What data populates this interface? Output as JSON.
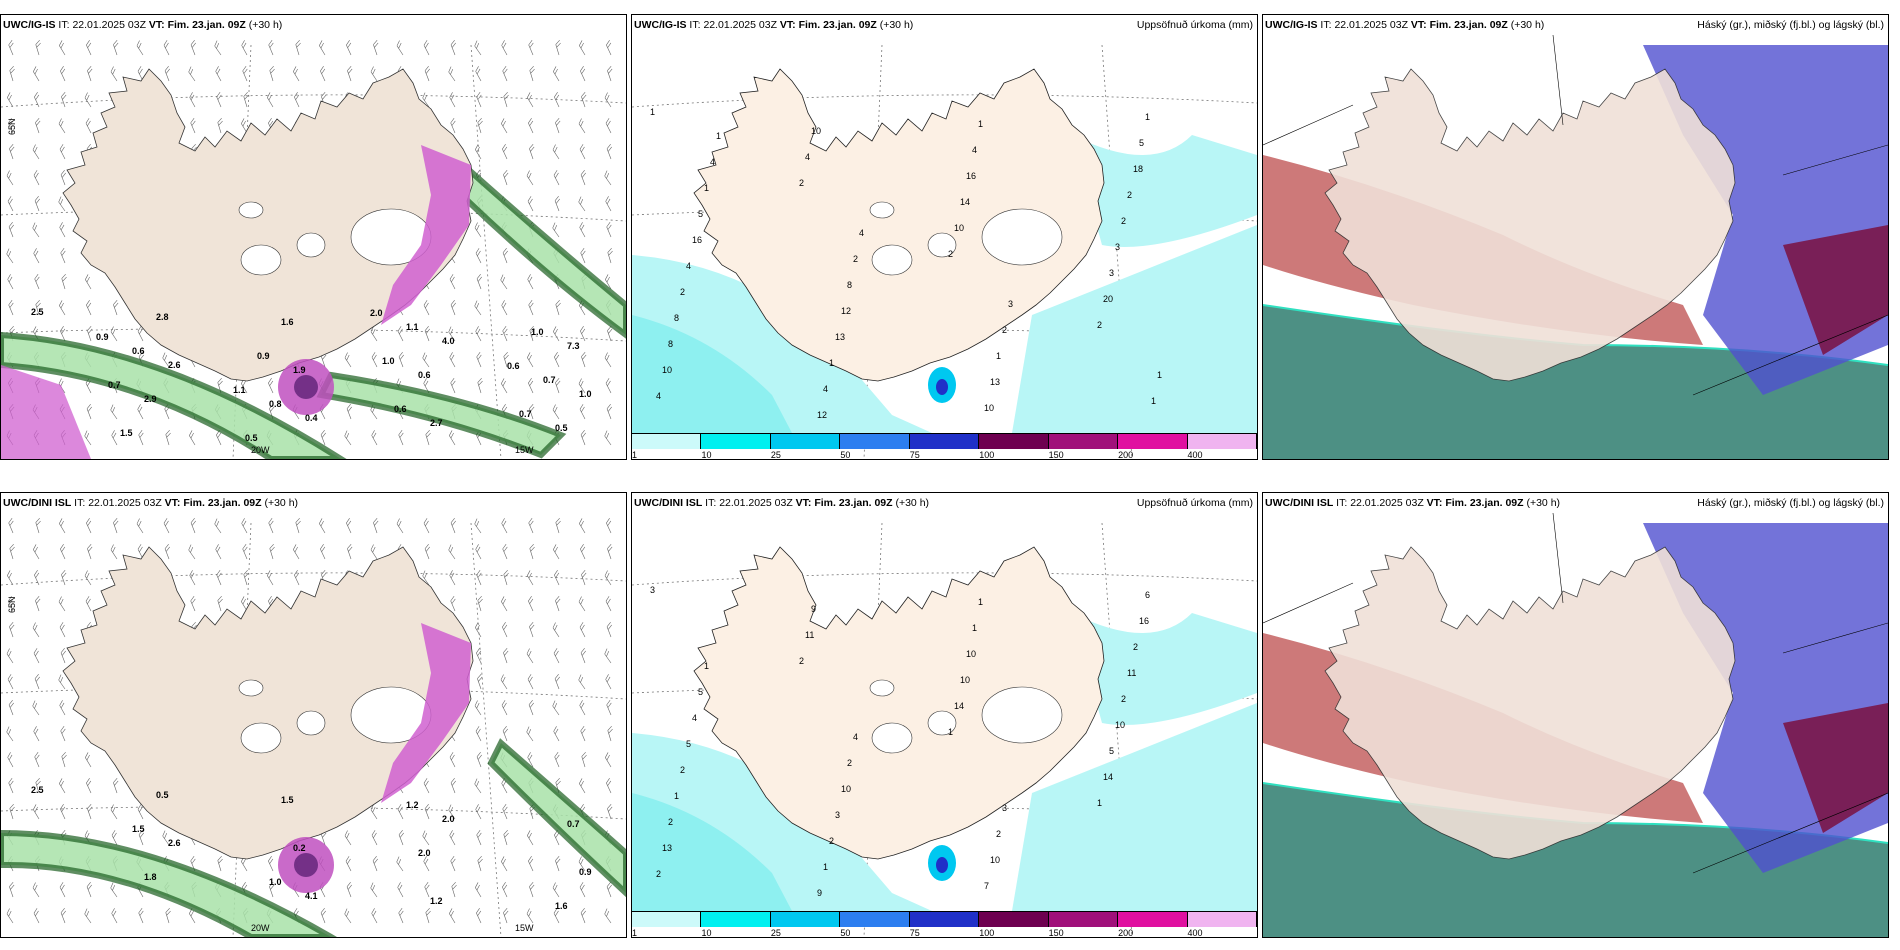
{
  "panels": [
    {
      "model": "UWC/IG-IS",
      "it_label": "IT:",
      "it": "22.01.2025 03Z",
      "vt_label": "VT:",
      "vt": "Fim. 23.jan. 09Z",
      "lead": "(+30 h)",
      "right_title": ""
    },
    {
      "model": "UWC/IG-IS",
      "it_label": "IT:",
      "it": "22.01.2025 03Z",
      "vt_label": "VT:",
      "vt": "Fim. 23.jan. 09Z",
      "lead": "(+30 h)",
      "right_title": "Uppsöfnuð úrkoma (mm)"
    },
    {
      "model": "UWC/IG-IS",
      "it_label": "IT:",
      "it": "22.01.2025 03Z",
      "vt_label": "VT:",
      "vt": "Fim. 23.jan. 09Z",
      "lead": "(+30 h)",
      "right_title": "Háský (gr.), miðský (fj.bl.) og lágský (bl.)"
    },
    {
      "model": "UWC/DINI ISL",
      "it_label": "IT:",
      "it": "22.01.2025 03Z",
      "vt_label": "VT:",
      "vt": "Fim. 23.jan. 09Z",
      "lead": "(+30 h)",
      "right_title": ""
    },
    {
      "model": "UWC/DINI ISL",
      "it_label": "IT:",
      "it": "22.01.2025 03Z",
      "vt_label": "VT:",
      "vt": "Fim. 23.jan. 09Z",
      "lead": "(+30 h)",
      "right_title": "Uppsöfnuð úrkoma (mm)"
    },
    {
      "model": "UWC/DINI ISL",
      "it_label": "IT:",
      "it": "22.01.2025 03Z",
      "vt_label": "VT:",
      "vt": "Fim. 23.jan. 09Z",
      "lead": "(+30 h)",
      "right_title": "Háský (gr.), miðský (fj.bl.) og lágský (bl.)"
    }
  ],
  "colorbar": {
    "labels": [
      "1",
      "10",
      "25",
      "50",
      "75",
      "100",
      "150",
      "200",
      "400"
    ],
    "colors": [
      "#ccfafa",
      "#00f0f0",
      "#00c8f0",
      "#2c7ef0",
      "#2030c8",
      "#6e0050",
      "#a0107a",
      "#e010a0",
      "#f0b4f0"
    ]
  },
  "lon_labels": {
    "w20": "20W",
    "w15": "15W"
  },
  "lat_label": "65N",
  "precip_values_top": [
    "1",
    "2",
    "2",
    "2",
    "4",
    "4",
    "10",
    "20",
    "10",
    "10",
    "14",
    "3",
    "8",
    "12",
    "16",
    "3",
    "8",
    "4",
    "4",
    "2",
    "2",
    "1",
    "1",
    "2",
    "4",
    "13",
    "10",
    "18",
    "16",
    "12",
    "13",
    "5",
    "5",
    "8",
    "1",
    "1",
    "1",
    "2",
    "2",
    "1",
    "4",
    "4",
    "3",
    "1",
    "1"
  ],
  "precip_values_bottom": [
    "3",
    "2",
    "1",
    "1",
    "2",
    "11",
    "14",
    "14",
    "13",
    "9",
    "10",
    "5",
    "2",
    "9",
    "10",
    "10",
    "1",
    "1",
    "1",
    "2",
    "2",
    "2",
    "1",
    "11",
    "5",
    "3",
    "7",
    "2",
    "4",
    "10",
    "10",
    "16",
    "5",
    "2",
    "2",
    "6",
    "1",
    "4",
    "3"
  ],
  "snow_values_top": [
    "2.5",
    "2.6",
    "0.4",
    "4.0",
    "1.0",
    "2.8",
    "1.9",
    "2.7",
    "7.3",
    "2.9",
    "1.6",
    "0.6",
    "0.5",
    "0.6",
    "0.8",
    "1.1",
    "0.7",
    "1.5",
    "0.9",
    "0.6",
    "1.0",
    "0.7",
    "0.5",
    "1.0",
    "0.7",
    "0.9",
    "1.1",
    "2.0",
    "0.6"
  ],
  "snow_values_bottom": [
    "2.5",
    "2.6",
    "4.1",
    "2.0",
    "0.9",
    "0.5",
    "0.2",
    "1.2",
    "0.7",
    "1.8",
    "1.5",
    "2.0",
    "1.6",
    "1.5",
    "1.0",
    "1.2"
  ]
}
